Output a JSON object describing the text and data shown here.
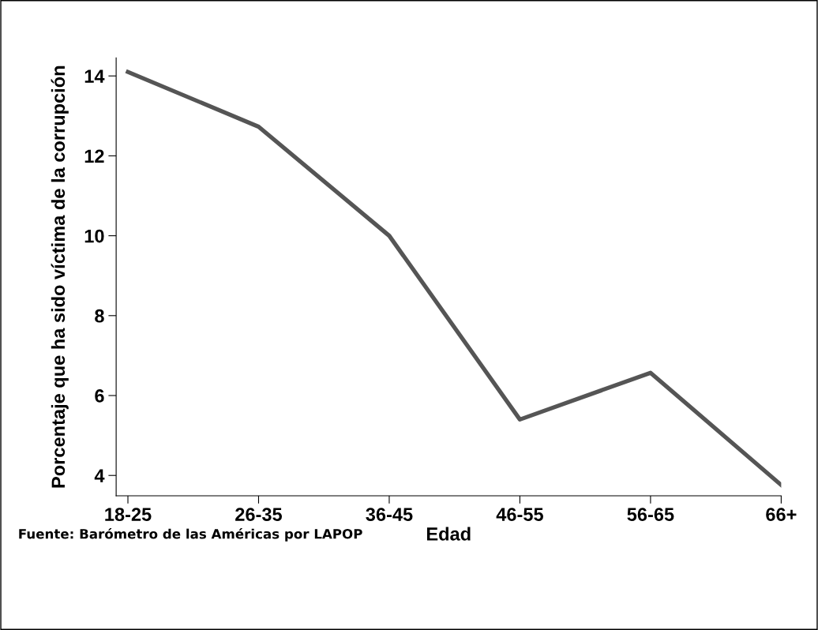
{
  "chart_data": {
    "type": "line",
    "xlabel": "Edad",
    "ylabel": "Porcentaje que ha sido víctima de la corrupción",
    "categories": [
      "18-25",
      "26-35",
      "36-45",
      "46-55",
      "56-65",
      "66+"
    ],
    "series": [
      {
        "color": "#555555",
        "values": [
          14.1,
          12.73,
          10.0,
          5.4,
          6.57,
          3.76
        ]
      }
    ],
    "ylim": [
      3.49,
      14.45
    ],
    "yticks": [
      4,
      6,
      8,
      10,
      12,
      14
    ],
    "grid": false,
    "legend": false,
    "marker": "none",
    "line_style": "solid",
    "annotations": [
      "Fuente: Barómetro de las Américas por LAPOP"
    ]
  }
}
